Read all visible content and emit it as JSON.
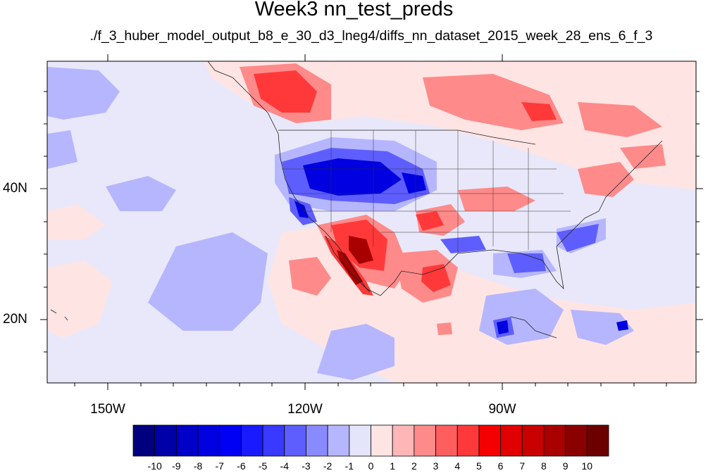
{
  "title": "Week3 nn_test_preds",
  "subtitle": "./f_3_huber_model_output_b8_e_30_d3_lneg4/diffs_nn_dataset_2015_week_28_ens_6_f_3",
  "axes": {
    "lat_labels": [
      "40N",
      "20N"
    ],
    "lon_labels": [
      "150W",
      "120W",
      "90W"
    ]
  },
  "colorbar": {
    "labels": [
      "-10",
      "-9",
      "-8",
      "-7",
      "-6",
      "-5",
      "-4",
      "-3",
      "-2",
      "-1",
      "0",
      "1",
      "2",
      "3",
      "4",
      "5",
      "6",
      "7",
      "8",
      "9",
      "10"
    ],
    "colors": [
      "#00007f",
      "#0000a8",
      "#0000c8",
      "#0000e0",
      "#0000f5",
      "#1a1aff",
      "#3939ff",
      "#5e5eff",
      "#8a8aff",
      "#b6b6ff",
      "#e4e4fa",
      "#ffe4e4",
      "#ffb6b6",
      "#ff8a8a",
      "#ff5e5e",
      "#ff3939",
      "#f50000",
      "#e00000",
      "#c80000",
      "#a80000",
      "#8a0000",
      "#6c0000"
    ]
  },
  "fields": {
    "background": "#e8e8fa"
  }
}
